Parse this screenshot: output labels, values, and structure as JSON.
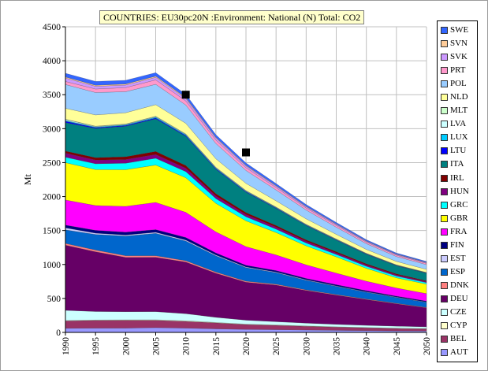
{
  "chart_data": {
    "type": "area",
    "stacked": true,
    "title": "COUNTRIES: EU30pc20N :Environment: National (N) Total: CO2",
    "ylabel": "Mt",
    "xlabel": "",
    "x": [
      1990,
      1995,
      2000,
      2005,
      2010,
      2015,
      2020,
      2025,
      2030,
      2035,
      2040,
      2045,
      2050
    ],
    "ylim": [
      0,
      4500
    ],
    "yticks": [
      0,
      500,
      1000,
      1500,
      2000,
      2500,
      3000,
      3500,
      4000,
      4500
    ],
    "grid": true,
    "legend_position": "right",
    "series": [
      {
        "name": "AUT",
        "color": "#9999ff",
        "values": [
          60,
          62,
          63,
          70,
          63,
          52,
          44,
          40,
          35,
          30,
          26,
          22,
          20
        ]
      },
      {
        "name": "BEL",
        "color": "#993366",
        "values": [
          110,
          115,
          115,
          108,
          100,
          88,
          72,
          64,
          55,
          48,
          42,
          36,
          32
        ]
      },
      {
        "name": "CYP",
        "color": "#ffffcc",
        "values": [
          5,
          6,
          7,
          8,
          8,
          7,
          6,
          6,
          5,
          5,
          4,
          4,
          4
        ]
      },
      {
        "name": "CZE",
        "color": "#ccffff",
        "values": [
          150,
          125,
          120,
          120,
          105,
          75,
          58,
          48,
          42,
          36,
          32,
          30,
          26
        ]
      },
      {
        "name": "DEU",
        "color": "#660066",
        "values": [
          960,
          880,
          800,
          800,
          760,
          650,
          560,
          540,
          480,
          430,
          380,
          330,
          280
        ]
      },
      {
        "name": "DNK",
        "color": "#ff8080",
        "values": [
          25,
          25,
          24,
          23,
          20,
          16,
          14,
          12,
          10,
          9,
          8,
          7,
          6
        ]
      },
      {
        "name": "ESP",
        "color": "#0066cc",
        "values": [
          200,
          230,
          290,
          330,
          290,
          240,
          200,
          170,
          140,
          120,
          100,
          85,
          75
        ]
      },
      {
        "name": "EST",
        "color": "#ccccff",
        "values": [
          30,
          18,
          15,
          15,
          14,
          12,
          10,
          9,
          8,
          7,
          6,
          6,
          5
        ]
      },
      {
        "name": "FIN",
        "color": "#000080",
        "values": [
          40,
          42,
          42,
          40,
          38,
          30,
          24,
          22,
          20,
          18,
          16,
          14,
          13
        ]
      },
      {
        "name": "FRA",
        "color": "#ff00ff",
        "values": [
          370,
          365,
          380,
          400,
          370,
          310,
          275,
          230,
          200,
          170,
          140,
          120,
          110
        ]
      },
      {
        "name": "GBR",
        "color": "#ffff00",
        "values": [
          550,
          530,
          540,
          550,
          510,
          420,
          380,
          330,
          280,
          240,
          190,
          150,
          140
        ]
      },
      {
        "name": "GRC",
        "color": "#00ffff",
        "values": [
          80,
          85,
          95,
          100,
          90,
          70,
          60,
          50,
          42,
          35,
          30,
          26,
          22
        ]
      },
      {
        "name": "HUN",
        "color": "#800080",
        "values": [
          60,
          55,
          55,
          56,
          50,
          40,
          34,
          30,
          26,
          23,
          20,
          18,
          15
        ]
      },
      {
        "name": "IRL",
        "color": "#800000",
        "values": [
          30,
          35,
          40,
          45,
          40,
          32,
          28,
          24,
          20,
          18,
          16,
          14,
          12
        ]
      },
      {
        "name": "ITA",
        "color": "#008080",
        "values": [
          420,
          430,
          450,
          480,
          430,
          360,
          300,
          250,
          210,
          170,
          140,
          120,
          110
        ]
      },
      {
        "name": "LTU",
        "color": "#0000ff",
        "values": [
          20,
          12,
          12,
          13,
          12,
          10,
          8,
          7,
          6,
          5,
          5,
          4,
          4
        ]
      },
      {
        "name": "LUX",
        "color": "#00ccff",
        "values": [
          10,
          9,
          9,
          12,
          11,
          9,
          8,
          7,
          6,
          5,
          5,
          4,
          4
        ]
      },
      {
        "name": "LVA",
        "color": "#ccffff",
        "values": [
          15,
          8,
          7,
          8,
          7,
          6,
          5,
          5,
          4,
          4,
          3,
          3,
          3
        ]
      },
      {
        "name": "MLT",
        "color": "#ccffcc",
        "values": [
          5,
          5,
          5,
          5,
          5,
          4,
          3,
          3,
          3,
          3,
          2,
          2,
          2
        ]
      },
      {
        "name": "NLD",
        "color": "#ffff99",
        "values": [
          160,
          165,
          165,
          170,
          155,
          125,
          105,
          90,
          80,
          68,
          57,
          50,
          45
        ]
      },
      {
        "name": "POL",
        "color": "#99ccff",
        "values": [
          350,
          330,
          310,
          300,
          270,
          225,
          190,
          160,
          130,
          105,
          85,
          72,
          70
        ]
      },
      {
        "name": "PRT",
        "color": "#ff99cc",
        "values": [
          45,
          52,
          60,
          65,
          60,
          50,
          42,
          36,
          30,
          26,
          22,
          20,
          18
        ]
      },
      {
        "name": "SVK",
        "color": "#cc99ff",
        "values": [
          50,
          40,
          38,
          38,
          34,
          28,
          24,
          20,
          17,
          15,
          12,
          11,
          10
        ]
      },
      {
        "name": "SVN",
        "color": "#ffcc99",
        "values": [
          15,
          15,
          15,
          16,
          15,
          12,
          10,
          9,
          8,
          7,
          6,
          5,
          5
        ]
      },
      {
        "name": "SWE",
        "color": "#3366ff",
        "values": [
          55,
          57,
          55,
          52,
          48,
          40,
          35,
          30,
          26,
          22,
          18,
          16,
          14
        ]
      }
    ],
    "targets": {
      "name": "Targets",
      "color": "#000000",
      "points": [
        {
          "x": 2010,
          "y": 3500
        },
        {
          "x": 2020,
          "y": 2650
        }
      ]
    }
  }
}
